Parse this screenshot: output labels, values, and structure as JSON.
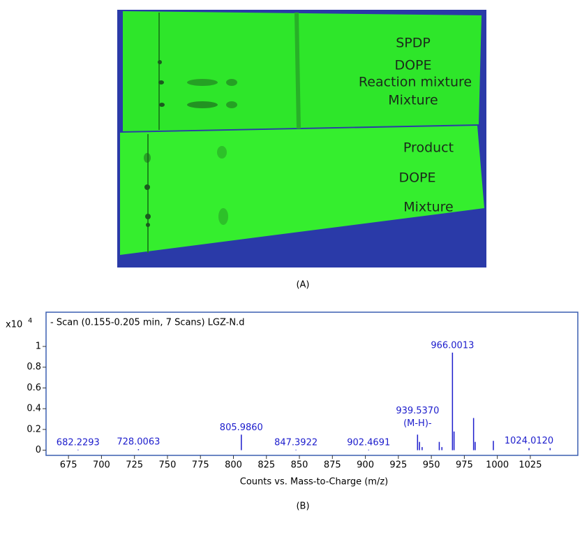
{
  "figure": {
    "photo_labels": [
      "SPDP",
      "DOPE",
      "Reaction mixture",
      "Mixture",
      "Product",
      "DOPE",
      "Mixture"
    ],
    "panel_labels": [
      "(A)",
      "(B)"
    ]
  },
  "chart_data": {
    "type": "spectrum",
    "title": "- Scan (0.155-0.205 min, 7 Scans) LGZ-N.d",
    "x_label": "Counts vs. Mass-to-Charge (m/z)",
    "y_multiplier": "x10",
    "y_multiplier_exponent": "4",
    "color": "#1c1ccc",
    "x": [
      682.2293,
      728.0063,
      805.986,
      847.3922,
      902.4691,
      939.537,
      941,
      943,
      956,
      958,
      966.0013,
      967.2,
      982,
      983.2,
      997,
      1024.012,
      1040
    ],
    "values": [
      0.005,
      0.01,
      0.15,
      0.005,
      0.005,
      0.15,
      0.08,
      0.03,
      0.08,
      0.03,
      0.94,
      0.18,
      0.31,
      0.08,
      0.09,
      0.02,
      0.02
    ],
    "peak_labels": [
      "682.2293",
      "728.0063",
      "805.9860",
      "847.3922",
      "902.4691",
      "939.5370",
      null,
      null,
      null,
      null,
      "966.0013",
      null,
      null,
      null,
      null,
      "1024.0120",
      null
    ],
    "annotation": {
      "text": "(M-H)-",
      "peak": 5
    },
    "xlim": [
      658,
      1061
    ],
    "ylim": [
      -0.05,
      1.33
    ],
    "xticks": [
      675,
      700,
      725,
      750,
      775,
      800,
      825,
      850,
      875,
      900,
      925,
      950,
      975,
      1000,
      1025
    ],
    "yticks": [
      0,
      0.2,
      0.4,
      0.6,
      0.8,
      1
    ]
  }
}
